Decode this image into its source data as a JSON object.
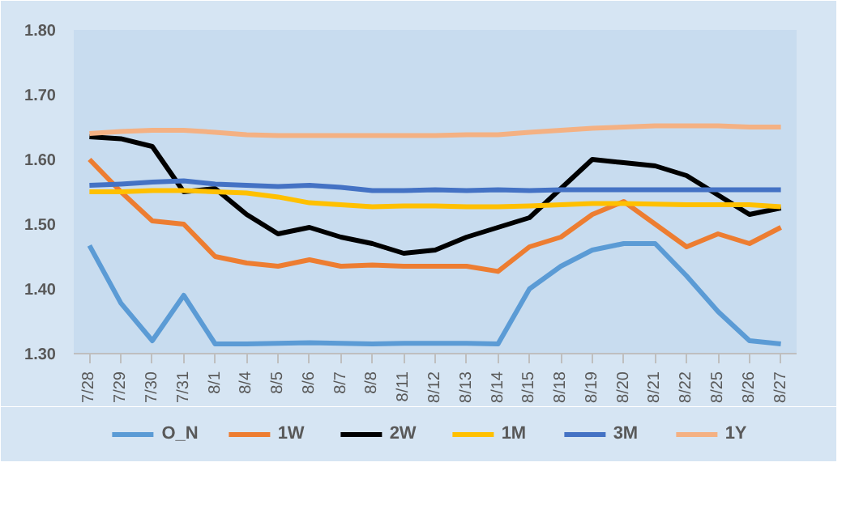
{
  "chart_data": {
    "type": "line",
    "categories": [
      "7/28",
      "7/29",
      "7/30",
      "7/31",
      "8/1",
      "8/4",
      "8/5",
      "8/6",
      "8/7",
      "8/8",
      "8/11",
      "8/12",
      "8/13",
      "8/14",
      "8/15",
      "8/18",
      "8/19",
      "8/20",
      "8/21",
      "8/22",
      "8/25",
      "8/26",
      "8/27"
    ],
    "ylim": [
      1.3,
      1.8
    ],
    "yticks": [
      {
        "value": 1.3,
        "label": "1.30"
      },
      {
        "value": 1.4,
        "label": "1.40"
      },
      {
        "value": 1.5,
        "label": "1.50"
      },
      {
        "value": 1.6,
        "label": "1.60"
      },
      {
        "value": 1.7,
        "label": "1.70"
      },
      {
        "value": 1.8,
        "label": "1.80"
      }
    ],
    "legend": "bottom",
    "series": [
      {
        "name": "O_N",
        "color": "#5b9bd5",
        "values": [
          1.467,
          1.378,
          1.32,
          1.39,
          1.315,
          1.315,
          1.316,
          1.317,
          1.316,
          1.315,
          1.316,
          1.316,
          1.316,
          1.315,
          1.4,
          1.435,
          1.46,
          1.47,
          1.47,
          1.42,
          1.365,
          1.32,
          1.315
        ]
      },
      {
        "name": "1W",
        "color": "#ed7d31",
        "values": [
          1.6,
          1.55,
          1.505,
          1.5,
          1.45,
          1.44,
          1.435,
          1.445,
          1.435,
          1.437,
          1.435,
          1.435,
          1.435,
          1.427,
          1.465,
          1.48,
          1.515,
          1.535,
          1.5,
          1.465,
          1.485,
          1.47,
          1.495
        ]
      },
      {
        "name": "2W",
        "color": "#000000",
        "values": [
          1.635,
          1.632,
          1.62,
          1.55,
          1.555,
          1.515,
          1.485,
          1.495,
          1.48,
          1.47,
          1.455,
          1.46,
          1.48,
          1.495,
          1.51,
          1.555,
          1.6,
          1.595,
          1.59,
          1.575,
          1.545,
          1.515,
          1.525
        ]
      },
      {
        "name": "1M",
        "color": "#ffc000",
        "values": [
          1.55,
          1.55,
          1.552,
          1.552,
          1.55,
          1.548,
          1.542,
          1.533,
          1.53,
          1.527,
          1.528,
          1.528,
          1.527,
          1.527,
          1.528,
          1.53,
          1.532,
          1.532,
          1.531,
          1.53,
          1.53,
          1.53,
          1.527
        ]
      },
      {
        "name": "3M",
        "color": "#4472c4",
        "values": [
          1.56,
          1.562,
          1.565,
          1.567,
          1.562,
          1.56,
          1.558,
          1.56,
          1.557,
          1.552,
          1.552,
          1.553,
          1.552,
          1.553,
          1.552,
          1.553,
          1.553,
          1.553,
          1.553,
          1.553,
          1.553,
          1.553,
          1.553
        ]
      },
      {
        "name": "1Y",
        "color": "#f4b183",
        "values": [
          1.64,
          1.643,
          1.645,
          1.645,
          1.642,
          1.638,
          1.637,
          1.637,
          1.637,
          1.637,
          1.637,
          1.637,
          1.638,
          1.638,
          1.642,
          1.645,
          1.648,
          1.65,
          1.652,
          1.652,
          1.652,
          1.65,
          1.65
        ]
      }
    ]
  }
}
